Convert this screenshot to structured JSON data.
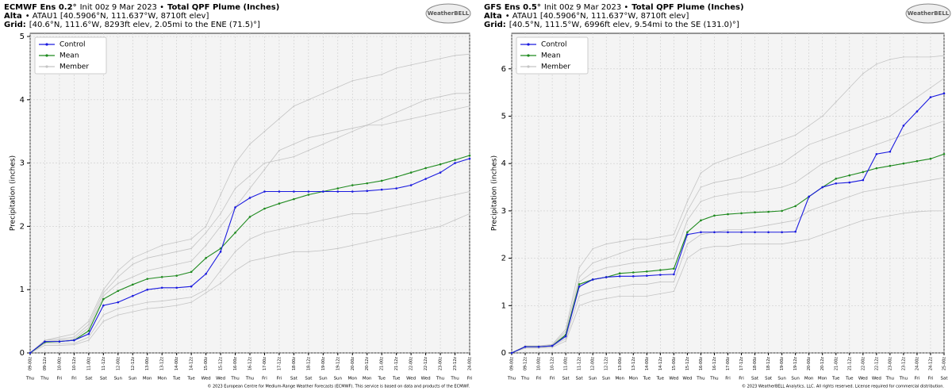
{
  "chart_data": [
    {
      "type": "line",
      "model": "ECMWF Ens 0.2°",
      "init": "Init 00z 9 Mar 2023 •",
      "title": "Total QPF Plume (Inches)",
      "site": "Alta",
      "site_info": "• ATAU1 [40.5906°N, 111.637°W, 8710ft elev]",
      "grid_label": "Grid:",
      "grid_info": "[40.6°N, 111.6°W, 8293ft elev, 2.05mi to the ENE (71.5)°]",
      "logo": "WeatherBELL",
      "ylabel": "Precipitation (inches)",
      "credit": "© 2023 European Centre for Medium-Range Weather Forecasts (ECMWF). This service is based on data and products of the ECMWF.",
      "categories": [
        "09-00z",
        "09-12z",
        "10-00z",
        "10-12z",
        "11-00z",
        "11-12z",
        "12-00z",
        "12-12z",
        "13-00z",
        "13-12z",
        "14-00z",
        "14-12z",
        "15-00z",
        "15-12z",
        "16-00z",
        "16-12z",
        "17-00z",
        "17-12z",
        "18-00z",
        "18-12z",
        "19-00z",
        "19-12z",
        "20-00z",
        "20-12z",
        "21-00z",
        "21-12z",
        "22-00z",
        "22-12z",
        "23-00z",
        "23-12z",
        "24-00z"
      ],
      "weekdays": [
        "Thu",
        "Thu",
        "Fri",
        "Fri",
        "Sat",
        "Sat",
        "Sun",
        "Sun",
        "Mon",
        "Mon",
        "Tue",
        "Tue",
        "Wed",
        "Wed",
        "Thu",
        "Thu",
        "Fri",
        "Fri",
        "Sat",
        "Sat",
        "Sun",
        "Sun",
        "Mon",
        "Mon",
        "Tue",
        "Tue",
        "Wed",
        "Wed",
        "Thu",
        "Thu",
        "Fri"
      ],
      "ylim": [
        0,
        5.05
      ],
      "yticks": [
        0,
        1,
        2,
        3,
        4,
        5
      ],
      "grid": true,
      "legend": "upper-left",
      "series": [
        {
          "name": "Control",
          "color": "#1a1adf",
          "values": [
            0,
            0.18,
            0.18,
            0.2,
            0.3,
            0.75,
            0.8,
            0.9,
            1.0,
            1.03,
            1.03,
            1.05,
            1.25,
            1.6,
            2.3,
            2.45,
            2.55,
            2.55,
            2.55,
            2.55,
            2.55,
            2.55,
            2.55,
            2.56,
            2.58,
            2.6,
            2.65,
            2.75,
            2.85,
            3.0,
            3.07
          ]
        },
        {
          "name": "Mean",
          "color": "#1f8a1f",
          "values": [
            0,
            0.17,
            0.18,
            0.2,
            0.35,
            0.85,
            0.98,
            1.08,
            1.17,
            1.2,
            1.22,
            1.28,
            1.5,
            1.65,
            1.9,
            2.15,
            2.28,
            2.36,
            2.43,
            2.5,
            2.55,
            2.6,
            2.65,
            2.68,
            2.72,
            2.78,
            2.85,
            2.92,
            2.98,
            3.05,
            3.12
          ]
        },
        {
          "name": "Member",
          "color": "#c4c4c4",
          "values": [
            0,
            0.2,
            0.25,
            0.3,
            0.5,
            1.0,
            1.3,
            1.5,
            1.6,
            1.7,
            1.75,
            1.8,
            2.0,
            2.5,
            3.0,
            3.3,
            3.5,
            3.7,
            3.9,
            4.0,
            4.1,
            4.2,
            4.3,
            4.35,
            4.4,
            4.5,
            4.55,
            4.6,
            4.65,
            4.7,
            4.72
          ]
        },
        {
          "color": "#c4c4c4",
          "values": [
            0,
            0.15,
            0.15,
            0.15,
            0.25,
            0.6,
            0.7,
            0.75,
            0.8,
            0.82,
            0.85,
            0.88,
            1.0,
            1.3,
            1.6,
            1.8,
            1.9,
            1.95,
            2.0,
            2.05,
            2.1,
            2.15,
            2.2,
            2.2,
            2.25,
            2.3,
            2.35,
            2.4,
            2.45,
            2.5,
            2.55
          ]
        },
        {
          "color": "#c4c4c4",
          "values": [
            0,
            0.18,
            0.2,
            0.22,
            0.4,
            0.9,
            1.1,
            1.2,
            1.3,
            1.35,
            1.4,
            1.45,
            1.7,
            2.0,
            2.3,
            2.6,
            2.9,
            3.2,
            3.3,
            3.4,
            3.45,
            3.5,
            3.55,
            3.6,
            3.6,
            3.65,
            3.7,
            3.75,
            3.8,
            3.85,
            3.9
          ]
        },
        {
          "color": "#c4c4c4",
          "values": [
            0,
            0.12,
            0.12,
            0.13,
            0.2,
            0.5,
            0.6,
            0.65,
            0.7,
            0.72,
            0.75,
            0.8,
            0.95,
            1.1,
            1.3,
            1.45,
            1.5,
            1.55,
            1.6,
            1.6,
            1.62,
            1.65,
            1.7,
            1.75,
            1.8,
            1.85,
            1.9,
            1.95,
            2.0,
            2.1,
            2.2
          ]
        },
        {
          "color": "#c4c4c4",
          "values": [
            0,
            0.2,
            0.22,
            0.25,
            0.45,
            0.95,
            1.2,
            1.4,
            1.5,
            1.55,
            1.6,
            1.65,
            1.9,
            2.2,
            2.6,
            2.8,
            3.0,
            3.05,
            3.1,
            3.2,
            3.3,
            3.4,
            3.5,
            3.6,
            3.7,
            3.8,
            3.9,
            4.0,
            4.05,
            4.1,
            4.1
          ]
        }
      ]
    },
    {
      "type": "line",
      "model": "GFS Ens 0.5°",
      "init": "Init 00z 9 Mar 2023 •",
      "title": "Total QPF Plume (Inches)",
      "site": "Alta",
      "site_info": "• ATAU1 [40.5906°N, 111.637°W, 8710ft elev]",
      "grid_label": "Grid:",
      "grid_info": "[40.5°N, 111.5°W, 6996ft elev, 9.54mi to the SE (131.0)°]",
      "logo": "WeatherBELL",
      "ylabel": "Precipitation (inches)",
      "credit": "© 2023 WeatherBELL Analytics, LLC. All rights reserved. License required for commercial distribution.",
      "categories": [
        "09-00z",
        "09-12z",
        "10-00z",
        "10-12z",
        "11-00z",
        "11-12z",
        "12-00z",
        "12-12z",
        "13-00z",
        "13-12z",
        "14-00z",
        "14-12z",
        "15-00z",
        "15-12z",
        "16-00z",
        "16-12z",
        "17-00z",
        "17-12z",
        "18-00z",
        "18-12z",
        "19-00z",
        "19-12z",
        "20-00z",
        "20-12z",
        "21-00z",
        "21-12z",
        "22-00z",
        "22-12z",
        "23-00z",
        "23-12z",
        "24-00z",
        "24-12z",
        "25-00z"
      ],
      "weekdays": [
        "Thu",
        "Thu",
        "Fri",
        "Fri",
        "Sat",
        "Sat",
        "Sun",
        "Sun",
        "Mon",
        "Mon",
        "Tue",
        "Tue",
        "Wed",
        "Wed",
        "Thu",
        "Thu",
        "Fri",
        "Fri",
        "Sat",
        "Sat",
        "Sun",
        "Sun",
        "Mon",
        "Mon",
        "Tue",
        "Tue",
        "Wed",
        "Wed",
        "Thu",
        "Thu",
        "Fri",
        "Fri",
        "Sat"
      ],
      "ylim": [
        0,
        6.75
      ],
      "yticks": [
        0,
        1,
        2,
        3,
        4,
        5,
        6
      ],
      "grid": true,
      "legend": "upper-left",
      "series": [
        {
          "name": "Control",
          "color": "#1a1adf",
          "values": [
            0,
            0.13,
            0.13,
            0.15,
            0.35,
            1.4,
            1.55,
            1.6,
            1.62,
            1.62,
            1.63,
            1.65,
            1.66,
            2.5,
            2.55,
            2.55,
            2.55,
            2.55,
            2.55,
            2.55,
            2.55,
            2.56,
            3.3,
            3.5,
            3.58,
            3.6,
            3.65,
            4.2,
            4.25,
            4.8,
            5.1,
            5.4,
            5.48
          ]
        },
        {
          "name": "Mean",
          "color": "#1f8a1f",
          "values": [
            0,
            0.13,
            0.13,
            0.15,
            0.38,
            1.45,
            1.55,
            1.6,
            1.68,
            1.7,
            1.72,
            1.75,
            1.78,
            2.55,
            2.8,
            2.9,
            2.93,
            2.95,
            2.97,
            2.98,
            3.0,
            3.1,
            3.3,
            3.5,
            3.68,
            3.75,
            3.82,
            3.9,
            3.95,
            4.0,
            4.05,
            4.1,
            4.2
          ]
        },
        {
          "name": "Member",
          "color": "#c4c4c4",
          "values": [
            0,
            0.15,
            0.15,
            0.18,
            0.5,
            1.8,
            2.2,
            2.3,
            2.35,
            2.4,
            2.4,
            2.45,
            2.5,
            3.2,
            3.8,
            4.0,
            4.1,
            4.2,
            4.3,
            4.4,
            4.5,
            4.6,
            4.8,
            5.0,
            5.3,
            5.6,
            5.9,
            6.1,
            6.2,
            6.25,
            6.25,
            6.25,
            6.28
          ]
        },
        {
          "color": "#c4c4c4",
          "values": [
            0,
            0.1,
            0.1,
            0.12,
            0.25,
            1.0,
            1.1,
            1.15,
            1.2,
            1.2,
            1.2,
            1.25,
            1.3,
            2.0,
            2.2,
            2.25,
            2.25,
            2.3,
            2.3,
            2.3,
            2.3,
            2.35,
            2.4,
            2.5,
            2.6,
            2.7,
            2.8,
            2.85,
            2.9,
            2.95,
            2.98,
            3.0,
            3.0
          ]
        },
        {
          "color": "#c4c4c4",
          "values": [
            0,
            0.13,
            0.13,
            0.15,
            0.4,
            1.5,
            1.7,
            1.8,
            1.85,
            1.9,
            1.92,
            1.95,
            2.0,
            2.8,
            3.2,
            3.3,
            3.35,
            3.4,
            3.4,
            3.45,
            3.5,
            3.6,
            3.8,
            4.0,
            4.1,
            4.2,
            4.3,
            4.4,
            4.5,
            4.6,
            4.7,
            4.8,
            4.9
          ]
        },
        {
          "color": "#c4c4c4",
          "values": [
            0,
            0.12,
            0.12,
            0.14,
            0.3,
            1.2,
            1.3,
            1.35,
            1.4,
            1.45,
            1.45,
            1.5,
            1.5,
            2.3,
            2.5,
            2.55,
            2.6,
            2.6,
            2.65,
            2.7,
            2.75,
            2.8,
            3.0,
            3.1,
            3.2,
            3.3,
            3.4,
            3.45,
            3.5,
            3.55,
            3.6,
            3.65,
            3.7
          ]
        },
        {
          "color": "#c4c4c4",
          "values": [
            0,
            0.14,
            0.14,
            0.16,
            0.45,
            1.6,
            1.9,
            2.0,
            2.1,
            2.2,
            2.25,
            2.3,
            2.35,
            3.0,
            3.5,
            3.6,
            3.65,
            3.7,
            3.8,
            3.9,
            4.0,
            4.2,
            4.4,
            4.5,
            4.6,
            4.7,
            4.8,
            4.9,
            5.0,
            5.2,
            5.4,
            5.6,
            5.8
          ]
        }
      ]
    }
  ]
}
